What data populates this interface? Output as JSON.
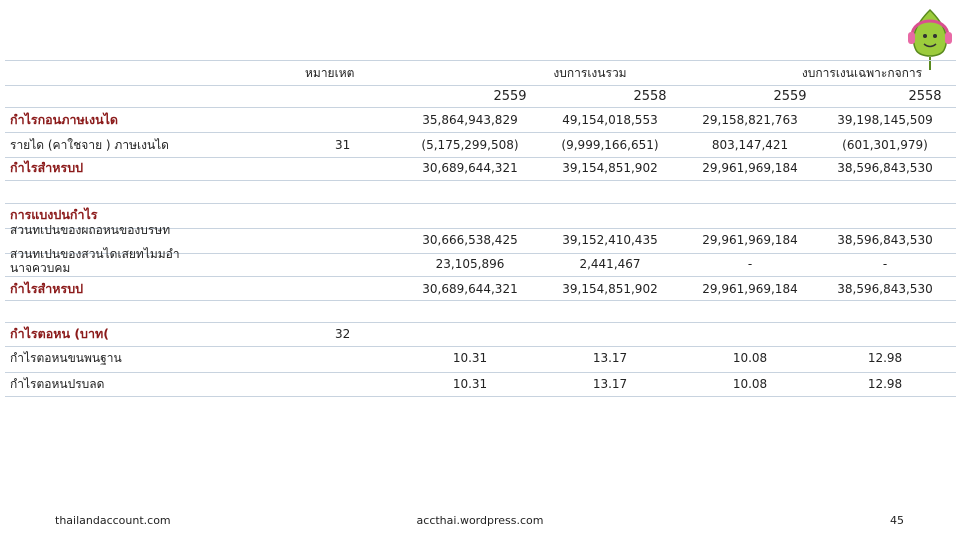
{
  "header": {
    "note": "หมายเหต",
    "group_consolidated": "งบการเงนรวม",
    "group_separate": "งบการเงนเฉพาะกจการ",
    "years": [
      "2559",
      "2558",
      "2559",
      "2558"
    ]
  },
  "table": {
    "rows": [
      {
        "label": "กำไรกอนภาษเงนได",
        "bold": true,
        "cells": [
          "35,864,943,829",
          "49,154,018,553",
          "29,158,821,763",
          "39,198,145,509"
        ]
      },
      {
        "label": "รายได (คาใชจาย ) ภาษเงนได",
        "note": "31",
        "cells": [
          "(5,175,299,508)",
          "(9,999,166,651)",
          "803,147,421",
          "(601,301,979)"
        ]
      },
      {
        "label": "กำไรสำหรบป",
        "bold": true,
        "cells": [
          "30,689,644,321",
          "39,154,851,902",
          "29,961,969,184",
          "38,596,843,530"
        ]
      },
      {
        "label": "การแบงปนกำไร",
        "bold": true
      },
      {
        "label": "สวนทเปนของผถอหนของบรษท",
        "cells": [
          "30,666,538,425",
          "39,152,410,435",
          "29,961,969,184",
          "38,596,843,530"
        ]
      },
      {
        "label": "สวนทเปนของสวนไดเสยทไมมอำนาจควบคม",
        "cells": [
          "23,105,896",
          "2,441,467",
          "-",
          "-"
        ]
      },
      {
        "label": "กำไรสำหรบป",
        "bold": true,
        "cells": [
          "30,689,644,321",
          "39,154,851,902",
          "29,961,969,184",
          "38,596,843,530"
        ]
      },
      {
        "label": "กำไรตอหน (บาท(",
        "bold": true,
        "note": "32"
      },
      {
        "label": "กำไรตอหนขนพนฐาน",
        "cells": [
          "10.31",
          "13.17",
          "10.08",
          "12.98"
        ]
      },
      {
        "label": "กำไรตอหนปรบลด",
        "cells": [
          "10.31",
          "13.17",
          "10.08",
          "12.98"
        ]
      }
    ]
  },
  "footer": {
    "left": "thailandaccount.com",
    "center": "accthai.wordpress.com",
    "page": "45"
  }
}
